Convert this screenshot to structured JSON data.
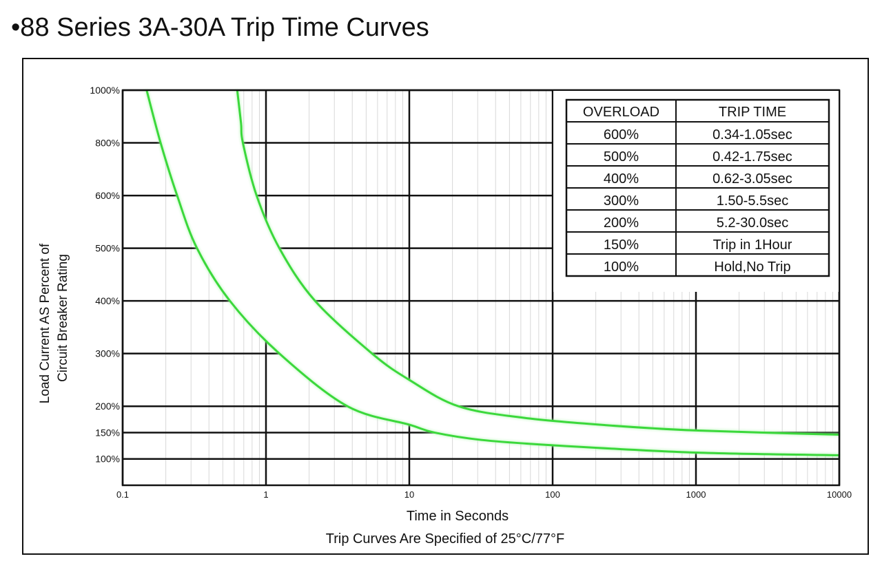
{
  "chart_data": {
    "type": "line",
    "title": "•88 Series 3A-30A Trip Time Curves",
    "xlabel": "Time in Seconds",
    "note": "Trip Curves Are Specified of 25°C/77°F",
    "ylabel": [
      "Load Current AS Percent of",
      "Circuit Breaker Rating"
    ],
    "xscale": "log",
    "xlim": [
      0.1,
      10000
    ],
    "xticks": [
      0.1,
      1,
      10,
      100,
      1000,
      10000
    ],
    "ylim": [
      50,
      1000
    ],
    "yticks": [
      {
        "value": 1000,
        "label": "1000%"
      },
      {
        "value": 800,
        "label": "800%"
      },
      {
        "value": 600,
        "label": "600%"
      },
      {
        "value": 500,
        "label": "500%"
      },
      {
        "value": 400,
        "label": "400%"
      },
      {
        "value": 300,
        "label": "300%"
      },
      {
        "value": 200,
        "label": "200%"
      },
      {
        "value": 150,
        "label": "150%"
      },
      {
        "value": 100,
        "label": "100%"
      }
    ],
    "grid": true,
    "series": [
      {
        "color": "#3bd83b",
        "x": [
          0.147,
          0.184,
          0.24,
          0.33,
          0.56,
          1.24,
          3.7,
          10,
          15,
          32,
          100,
          1000,
          10000
        ],
        "values": [
          1000,
          800,
          600,
          500,
          400,
          300,
          200,
          165,
          150,
          136,
          126,
          112,
          107
        ]
      },
      {
        "color": "#3bd83b",
        "x": [
          0.63,
          0.67,
          0.69,
          0.86,
          1.24,
          2.2,
          5.5,
          10,
          22,
          63,
          237,
          1000,
          10000
        ],
        "values": [
          1000,
          874,
          800,
          600,
          500,
          400,
          300,
          250,
          200,
          178,
          164,
          154,
          146
        ]
      }
    ]
  },
  "table": {
    "header": [
      "OVERLOAD",
      "TRIP TIME"
    ],
    "rows": [
      [
        "600%",
        "0.34-1.05sec"
      ],
      [
        "500%",
        "0.42-1.75sec"
      ],
      [
        "400%",
        "0.62-3.05sec"
      ],
      [
        "300%",
        "1.50-5.5sec"
      ],
      [
        "200%",
        "5.2-30.0sec"
      ],
      [
        "150%",
        "Trip in 1Hour"
      ],
      [
        "100%",
        "Hold,No Trip"
      ]
    ]
  }
}
